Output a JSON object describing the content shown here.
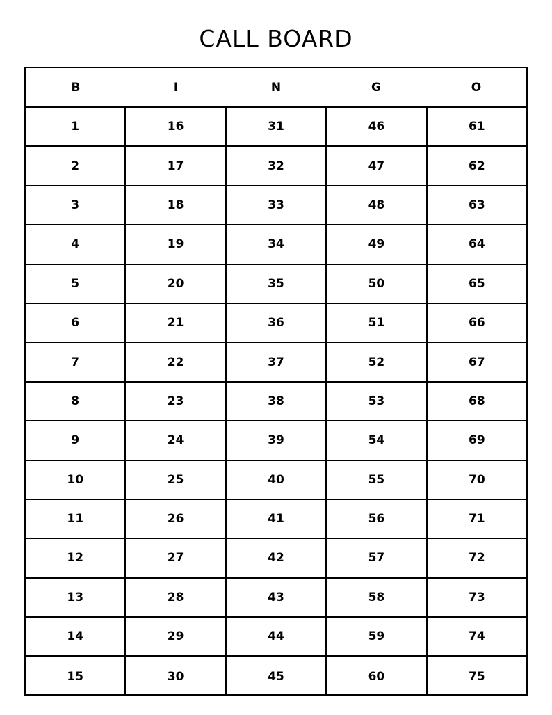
{
  "title": "CALL BOARD",
  "headers": [
    "B",
    "I",
    "N",
    "G",
    "O"
  ],
  "rows": [
    [
      "1",
      "16",
      "31",
      "46",
      "61"
    ],
    [
      "2",
      "17",
      "32",
      "47",
      "62"
    ],
    [
      "3",
      "18",
      "33",
      "48",
      "63"
    ],
    [
      "4",
      "19",
      "34",
      "49",
      "64"
    ],
    [
      "5",
      "20",
      "35",
      "50",
      "65"
    ],
    [
      "6",
      "21",
      "36",
      "51",
      "66"
    ],
    [
      "7",
      "22",
      "37",
      "52",
      "67"
    ],
    [
      "8",
      "23",
      "38",
      "53",
      "68"
    ],
    [
      "9",
      "24",
      "39",
      "54",
      "69"
    ],
    [
      "10",
      "25",
      "40",
      "55",
      "70"
    ],
    [
      "11",
      "26",
      "41",
      "56",
      "71"
    ],
    [
      "12",
      "27",
      "42",
      "57",
      "72"
    ],
    [
      "13",
      "28",
      "43",
      "58",
      "73"
    ],
    [
      "14",
      "29",
      "44",
      "59",
      "74"
    ],
    [
      "15",
      "30",
      "45",
      "60",
      "75"
    ]
  ]
}
